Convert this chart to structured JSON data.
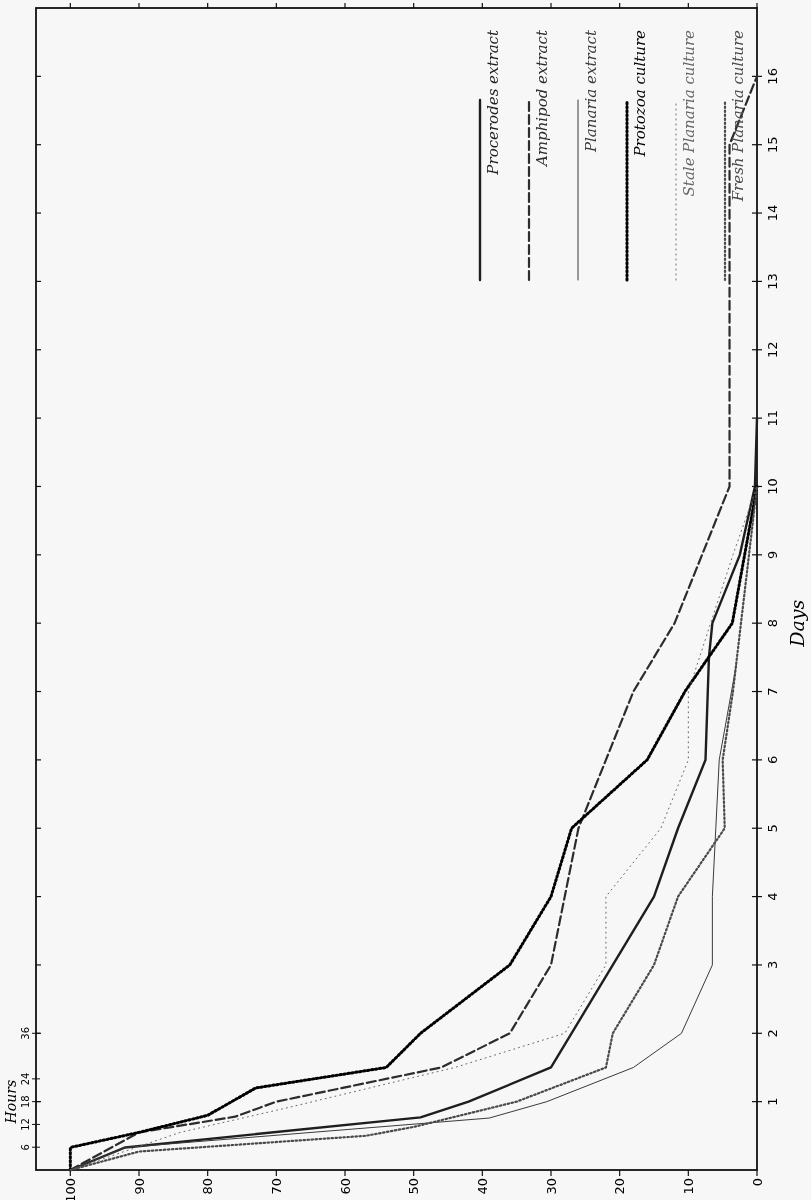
{
  "chart_data": {
    "type": "line",
    "ylabel": "Days",
    "y2label": "Hours",
    "xlim": [
      105,
      0
    ],
    "xticks": [
      100,
      90,
      80,
      70,
      60,
      50,
      40,
      30,
      20,
      10,
      0
    ],
    "ylim": [
      0,
      17
    ],
    "yticks": [
      1,
      2,
      3,
      4,
      5,
      6,
      7,
      8,
      9,
      10,
      11,
      12,
      13,
      14,
      15,
      16
    ],
    "y2lim": [
      0,
      306
    ],
    "y2ticks": [
      6,
      12,
      18,
      24,
      36
    ],
    "grid": false,
    "legend": "top right",
    "marker": "none",
    "series": [
      {
        "name": "Procerodes extract",
        "color": "#1e1e1e",
        "line_style": "solid",
        "values": [
          0,
          0.33,
          0.77,
          1,
          1.5,
          4,
          5,
          6,
          7.5,
          8,
          9,
          10,
          11
        ],
        "x": [
          100,
          92,
          49,
          42,
          30,
          15,
          11.5,
          7.5,
          7,
          6.5,
          2.5,
          0.3,
          0
        ]
      },
      {
        "name": "Amphipod extract",
        "color": "#2c2c2c",
        "line_style": "dashed",
        "values": [
          0,
          0.55,
          0.78,
          1,
          1.5,
          2,
          3,
          5,
          6,
          7,
          8,
          10,
          15,
          16
        ],
        "x": [
          100,
          90,
          76,
          70,
          46,
          36,
          30,
          26,
          22,
          18,
          12,
          4,
          4,
          0
        ]
      },
      {
        "name": "Planaria extract",
        "color": "#3a3a3a",
        "line_style": "solid",
        "values": [
          0,
          0.33,
          0.76,
          1,
          1.5,
          2,
          3,
          4,
          5,
          6,
          7.4
        ],
        "x": [
          100,
          92,
          39,
          30.6,
          18,
          11,
          6.5,
          6.5,
          6,
          5.5,
          3
        ]
      },
      {
        "name": "Protozoa culture",
        "color": "#000000",
        "line_style": "dotted",
        "values": [
          0,
          0.33,
          0.55,
          0.8,
          1.2,
          1.5,
          2,
          3,
          4,
          5,
          6,
          7,
          8,
          10
        ],
        "x": [
          100,
          100,
          90,
          80,
          73,
          54,
          49,
          36,
          30,
          27,
          16,
          10.5,
          3.6,
          0
        ]
      },
      {
        "name": "Stale Planaria culture",
        "color": "#666666",
        "line_style": "dotted",
        "values": [
          0,
          0.55,
          0.92,
          1.5,
          2,
          3,
          4,
          5,
          6,
          7,
          9,
          10
        ],
        "x": [
          100,
          84,
          68,
          44,
          28,
          22,
          22,
          14,
          10,
          10,
          3.5,
          0
        ]
      },
      {
        "name": "Fresh Planaria culture",
        "color": "#4a4a4a",
        "line_style": "dotted",
        "values": [
          0,
          0.27,
          0.5,
          0.63,
          1,
          1.5,
          2,
          3,
          4,
          5,
          6,
          7,
          10
        ],
        "x": [
          100,
          90,
          57,
          50,
          35,
          22,
          21,
          15,
          11.5,
          4.7,
          5,
          3.5,
          0
        ]
      }
    ]
  }
}
